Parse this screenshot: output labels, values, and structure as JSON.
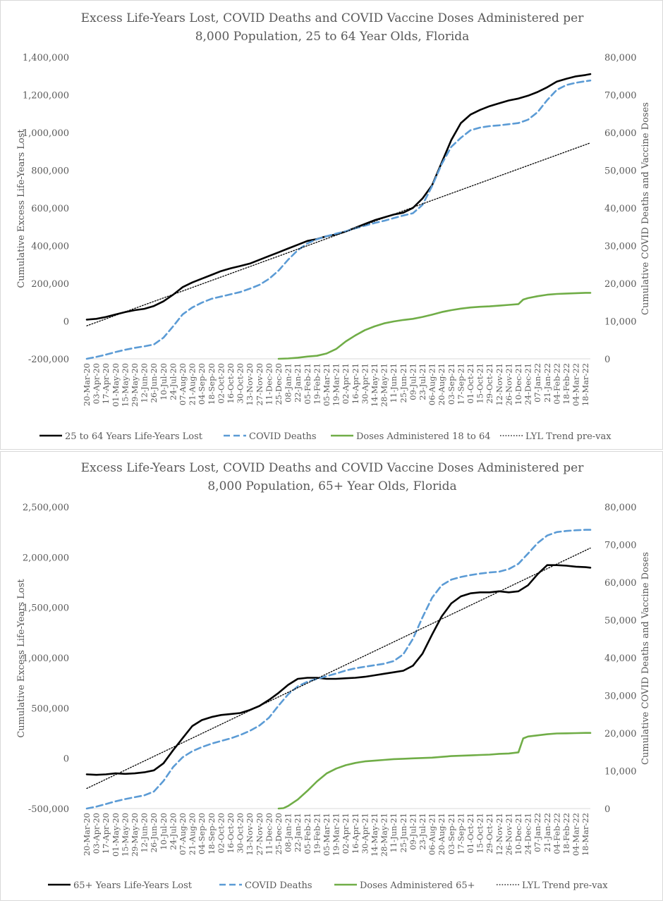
{
  "colors": {
    "lyl": "#000000",
    "deaths": "#5b9bd5",
    "doses": "#70ad47",
    "trend": "#000000",
    "text": "#595959",
    "axis": "#d9d9d9"
  },
  "x_tick_labels": [
    "20-Mar-20",
    "03-Apr-20",
    "17-Apr-20",
    "01-May-20",
    "15-May-20",
    "29-May-20",
    "12-Jun-20",
    "26-Jun-20",
    "10-Jul-20",
    "24-Jul-20",
    "07-Aug-20",
    "21-Aug-20",
    "04-Sep-20",
    "18-Sep-20",
    "02-Oct-20",
    "16-Oct-20",
    "30-Oct-20",
    "13-Nov-20",
    "27-Nov-20",
    "11-Dec-20",
    "25-Dec-20",
    "08-Jan-21",
    "22-Jan-21",
    "05-Feb-21",
    "19-Feb-21",
    "05-Mar-21",
    "19-Mar-21",
    "02-Apr-21",
    "16-Apr-21",
    "30-Apr-21",
    "14-May-21",
    "28-May-21",
    "11-Jun-21",
    "25-Jun-21",
    "09-Jul-21",
    "23-Jul-21",
    "06-Aug-21",
    "20-Aug-21",
    "03-Sep-21",
    "17-Sep-21",
    "01-Oct-21",
    "15-Oct-21",
    "29-Oct-21",
    "12-Nov-21",
    "26-Nov-21",
    "10-Dec-21",
    "24-Dec-21",
    "07-Jan-22",
    "21-Jan-22",
    "04-Feb-22",
    "18-Feb-22",
    "04-Mar-22",
    "18-Mar-22"
  ],
  "chart_data": [
    {
      "type": "line",
      "title_line1": "Excess Life-Years Lost, COVID Deaths and COVID Vaccine Doses Administered per",
      "title_line2": "8,000 Population, 25 to 64 Year Olds, Florida",
      "ylabel_left": "Cumulative Excess Life-Years Lost",
      "ylabel_right": "Cumulative COVID Deaths and Vaccine Doses",
      "ylim_left": [
        -200000,
        1400000
      ],
      "ylim_right": [
        0,
        80000
      ],
      "yticks_left": [
        "1,400,000",
        "1,200,000",
        "1,000,000",
        "800,000",
        "600,000",
        "400,000",
        "200,000",
        "0",
        "-200,000"
      ],
      "yticks_right": [
        "80,000",
        "70,000",
        "60,000",
        "50,000",
        "40,000",
        "30,000",
        "20,000",
        "10,000",
        "0"
      ],
      "x_start": "20-Mar-20",
      "x_end": "25-Mar-22",
      "legend_position": "bottom",
      "legend": [
        "25 to 64 Years Life-Years Lost",
        "COVID Deaths",
        "Doses Administered 18 to 64",
        "LYL Trend pre-vax"
      ],
      "series": [
        {
          "name": "25 to 64 Years Life-Years Lost",
          "axis": "left",
          "style": "solid-black",
          "x": [
            "20-Mar-20",
            "03-Apr-20",
            "17-Apr-20",
            "01-May-20",
            "15-May-20",
            "29-May-20",
            "12-Jun-20",
            "26-Jun-20",
            "10-Jul-20",
            "24-Jul-20",
            "07-Aug-20",
            "21-Aug-20",
            "04-Sep-20",
            "18-Sep-20",
            "02-Oct-20",
            "16-Oct-20",
            "30-Oct-20",
            "13-Nov-20",
            "27-Nov-20",
            "11-Dec-20",
            "25-Dec-20",
            "08-Jan-21",
            "22-Jan-21",
            "05-Feb-21",
            "19-Feb-21",
            "05-Mar-21",
            "19-Mar-21",
            "02-Apr-21",
            "16-Apr-21",
            "30-Apr-21",
            "14-May-21",
            "28-May-21",
            "11-Jun-21",
            "25-Jun-21",
            "09-Jul-21",
            "23-Jul-21",
            "06-Aug-21",
            "20-Aug-21",
            "03-Sep-21",
            "17-Sep-21",
            "01-Oct-21",
            "15-Oct-21",
            "29-Oct-21",
            "12-Nov-21",
            "26-Nov-21",
            "10-Dec-21",
            "24-Dec-21",
            "07-Jan-22",
            "21-Jan-22",
            "04-Feb-22",
            "18-Feb-22",
            "04-Mar-22",
            "18-Mar-22",
            "25-Mar-22"
          ],
          "values": [
            8000,
            12000,
            22000,
            35000,
            48000,
            58000,
            65000,
            80000,
            105000,
            140000,
            180000,
            205000,
            225000,
            245000,
            265000,
            280000,
            292000,
            305000,
            325000,
            345000,
            365000,
            385000,
            405000,
            425000,
            435000,
            450000,
            460000,
            475000,
            495000,
            515000,
            535000,
            550000,
            565000,
            575000,
            600000,
            650000,
            720000,
            840000,
            960000,
            1050000,
            1095000,
            1120000,
            1140000,
            1155000,
            1170000,
            1180000,
            1195000,
            1215000,
            1240000,
            1270000,
            1285000,
            1298000,
            1305000,
            1310000
          ]
        },
        {
          "name": "COVID Deaths",
          "axis": "right",
          "style": "dashed-blue",
          "x": [
            "20-Mar-20",
            "03-Apr-20",
            "17-Apr-20",
            "01-May-20",
            "15-May-20",
            "29-May-20",
            "12-Jun-20",
            "26-Jun-20",
            "10-Jul-20",
            "24-Jul-20",
            "07-Aug-20",
            "21-Aug-20",
            "04-Sep-20",
            "18-Sep-20",
            "02-Oct-20",
            "16-Oct-20",
            "30-Oct-20",
            "13-Nov-20",
            "27-Nov-20",
            "11-Dec-20",
            "25-Dec-20",
            "08-Jan-21",
            "22-Jan-21",
            "05-Feb-21",
            "19-Feb-21",
            "05-Mar-21",
            "19-Mar-21",
            "02-Apr-21",
            "16-Apr-21",
            "30-Apr-21",
            "14-May-21",
            "28-May-21",
            "11-Jun-21",
            "25-Jun-21",
            "09-Jul-21",
            "23-Jul-21",
            "06-Aug-21",
            "20-Aug-21",
            "03-Sep-21",
            "17-Sep-21",
            "01-Oct-21",
            "15-Oct-21",
            "29-Oct-21",
            "12-Nov-21",
            "26-Nov-21",
            "10-Dec-21",
            "24-Dec-21",
            "07-Jan-22",
            "21-Jan-22",
            "04-Feb-22",
            "18-Feb-22",
            "04-Mar-22",
            "18-Mar-22",
            "25-Mar-22"
          ],
          "values": [
            0,
            500,
            1100,
            1800,
            2400,
            2900,
            3300,
            3800,
            5600,
            8600,
            11800,
            13600,
            14900,
            15900,
            16500,
            17100,
            17700,
            18600,
            19600,
            21200,
            23400,
            26300,
            28800,
            30600,
            31700,
            32500,
            33200,
            33800,
            34600,
            35300,
            36000,
            36600,
            37300,
            38000,
            38600,
            40800,
            45800,
            51600,
            56200,
            58600,
            60600,
            61300,
            61700,
            61900,
            62200,
            62500,
            63400,
            65400,
            68600,
            71300,
            72600,
            73200,
            73600,
            73800
          ]
        },
        {
          "name": "Doses Administered 18 to 64",
          "axis": "right",
          "style": "solid-green",
          "x": [
            "25-Dec-20",
            "08-Jan-21",
            "22-Jan-21",
            "05-Feb-21",
            "19-Feb-21",
            "05-Mar-21",
            "19-Mar-21",
            "02-Apr-21",
            "16-Apr-21",
            "30-Apr-21",
            "14-May-21",
            "28-May-21",
            "11-Jun-21",
            "25-Jun-21",
            "09-Jul-21",
            "23-Jul-21",
            "06-Aug-21",
            "20-Aug-21",
            "03-Sep-21",
            "17-Sep-21",
            "01-Oct-21",
            "15-Oct-21",
            "29-Oct-21",
            "12-Nov-21",
            "26-Nov-21",
            "10-Dec-21",
            "17-Dec-21",
            "24-Dec-21",
            "07-Jan-22",
            "21-Jan-22",
            "04-Feb-22",
            "18-Feb-22",
            "04-Mar-22",
            "18-Mar-22",
            "25-Mar-22"
          ],
          "values": [
            0,
            100,
            300,
            600,
            800,
            1400,
            2600,
            4600,
            6200,
            7600,
            8600,
            9400,
            9900,
            10300,
            10600,
            11100,
            11700,
            12400,
            12900,
            13300,
            13600,
            13800,
            13900,
            14100,
            14300,
            14500,
            15700,
            16100,
            16600,
            17000,
            17200,
            17300,
            17400,
            17500,
            17500
          ]
        },
        {
          "name": "LYL Trend pre-vax",
          "axis": "left",
          "style": "dotted-black",
          "x": [
            "20-Mar-20",
            "25-Mar-22"
          ],
          "values": [
            -25000,
            945000
          ]
        }
      ]
    },
    {
      "type": "line",
      "title_line1": "Excess Life-Years Lost, COVID Deaths and COVID Vaccine Doses Administered per",
      "title_line2": "8,000 Population, 65+ Year Olds, Florida",
      "ylabel_left": "Cumulative Excess Life-Years Lost",
      "ylabel_right": "Cumulative COVID Deaths and Vaccine Doses",
      "ylim_left": [
        -500000,
        2500000
      ],
      "ylim_right": [
        0,
        80000
      ],
      "yticks_left": [
        "2,500,000",
        "2,000,000",
        "1,500,000",
        "1,000,000",
        "500,000",
        "0",
        "-500,000"
      ],
      "yticks_right": [
        "80,000",
        "70,000",
        "60,000",
        "50,000",
        "40,000",
        "30,000",
        "20,000",
        "10,000",
        "0"
      ],
      "x_start": "20-Mar-20",
      "x_end": "25-Mar-22",
      "legend_position": "bottom",
      "legend": [
        "65+ Years Life-Years Lost",
        "COVID Deaths",
        "Doses Administered 65+",
        "LYL Trend pre-vax"
      ],
      "series": [
        {
          "name": "65+ Years Life-Years Lost",
          "axis": "left",
          "style": "solid-black",
          "x": [
            "20-Mar-20",
            "03-Apr-20",
            "17-Apr-20",
            "01-May-20",
            "15-May-20",
            "29-May-20",
            "12-Jun-20",
            "26-Jun-20",
            "10-Jul-20",
            "24-Jul-20",
            "07-Aug-20",
            "21-Aug-20",
            "04-Sep-20",
            "18-Sep-20",
            "02-Oct-20",
            "16-Oct-20",
            "30-Oct-20",
            "13-Nov-20",
            "27-Nov-20",
            "11-Dec-20",
            "25-Dec-20",
            "08-Jan-21",
            "22-Jan-21",
            "05-Feb-21",
            "19-Feb-21",
            "05-Mar-21",
            "19-Mar-21",
            "02-Apr-21",
            "16-Apr-21",
            "30-Apr-21",
            "14-May-21",
            "28-May-21",
            "11-Jun-21",
            "25-Jun-21",
            "09-Jul-21",
            "23-Jul-21",
            "06-Aug-21",
            "20-Aug-21",
            "03-Sep-21",
            "17-Sep-21",
            "01-Oct-21",
            "15-Oct-21",
            "29-Oct-21",
            "12-Nov-21",
            "26-Nov-21",
            "10-Dec-21",
            "24-Dec-21",
            "07-Jan-22",
            "21-Jan-22",
            "04-Feb-22",
            "18-Feb-22",
            "04-Mar-22",
            "18-Mar-22",
            "25-Mar-22"
          ],
          "values": [
            -160000,
            -165000,
            -160000,
            -150000,
            -155000,
            -150000,
            -140000,
            -120000,
            -50000,
            80000,
            200000,
            320000,
            380000,
            410000,
            430000,
            440000,
            450000,
            480000,
            520000,
            580000,
            650000,
            730000,
            790000,
            800000,
            800000,
            790000,
            790000,
            795000,
            800000,
            810000,
            825000,
            840000,
            855000,
            870000,
            920000,
            1040000,
            1230000,
            1410000,
            1540000,
            1610000,
            1640000,
            1650000,
            1650000,
            1660000,
            1650000,
            1660000,
            1720000,
            1830000,
            1920000,
            1920000,
            1915000,
            1905000,
            1900000,
            1895000
          ]
        },
        {
          "name": "COVID Deaths",
          "axis": "right",
          "style": "dashed-blue",
          "x": [
            "20-Mar-20",
            "03-Apr-20",
            "17-Apr-20",
            "01-May-20",
            "15-May-20",
            "29-May-20",
            "12-Jun-20",
            "26-Jun-20",
            "10-Jul-20",
            "24-Jul-20",
            "07-Aug-20",
            "21-Aug-20",
            "04-Sep-20",
            "18-Sep-20",
            "02-Oct-20",
            "16-Oct-20",
            "30-Oct-20",
            "13-Nov-20",
            "27-Nov-20",
            "11-Dec-20",
            "25-Dec-20",
            "08-Jan-21",
            "22-Jan-21",
            "05-Feb-21",
            "19-Feb-21",
            "05-Mar-21",
            "19-Mar-21",
            "02-Apr-21",
            "16-Apr-21",
            "30-Apr-21",
            "14-May-21",
            "28-May-21",
            "11-Jun-21",
            "25-Jun-21",
            "09-Jul-21",
            "23-Jul-21",
            "06-Aug-21",
            "20-Aug-21",
            "03-Sep-21",
            "17-Sep-21",
            "01-Oct-21",
            "15-Oct-21",
            "29-Oct-21",
            "12-Nov-21",
            "26-Nov-21",
            "10-Dec-21",
            "24-Dec-21",
            "07-Jan-22",
            "21-Jan-22",
            "04-Feb-22",
            "18-Feb-22",
            "04-Mar-22",
            "18-Mar-22",
            "25-Mar-22"
          ],
          "values": [
            0,
            500,
            1200,
            1900,
            2500,
            3000,
            3500,
            4500,
            7300,
            11000,
            13600,
            15200,
            16300,
            17200,
            17900,
            18600,
            19500,
            20600,
            22000,
            24100,
            27300,
            30300,
            32400,
            33600,
            34400,
            35100,
            35800,
            36600,
            37200,
            37600,
            38000,
            38400,
            39100,
            40900,
            45000,
            50700,
            55900,
            59200,
            60700,
            61400,
            61900,
            62300,
            62600,
            62800,
            63500,
            64900,
            67600,
            70400,
            72400,
            73300,
            73600,
            73800,
            73900,
            73900
          ]
        },
        {
          "name": "Doses Administered 65+",
          "axis": "right",
          "style": "solid-green",
          "x": [
            "25-Dec-20",
            "01-Jan-21",
            "08-Jan-21",
            "22-Jan-21",
            "05-Feb-21",
            "19-Feb-21",
            "05-Mar-21",
            "19-Mar-21",
            "02-Apr-21",
            "16-Apr-21",
            "30-Apr-21",
            "14-May-21",
            "28-May-21",
            "11-Jun-21",
            "25-Jun-21",
            "09-Jul-21",
            "23-Jul-21",
            "06-Aug-21",
            "20-Aug-21",
            "03-Sep-21",
            "17-Sep-21",
            "01-Oct-21",
            "15-Oct-21",
            "29-Oct-21",
            "12-Nov-21",
            "26-Nov-21",
            "10-Dec-21",
            "17-Dec-21",
            "24-Dec-21",
            "07-Jan-22",
            "21-Jan-22",
            "04-Feb-22",
            "18-Feb-22",
            "04-Mar-22",
            "18-Mar-22",
            "25-Mar-22"
          ],
          "values": [
            0,
            100,
            700,
            2400,
            4700,
            7200,
            9300,
            10600,
            11500,
            12100,
            12500,
            12700,
            12900,
            13100,
            13200,
            13300,
            13400,
            13500,
            13700,
            13900,
            14000,
            14100,
            14200,
            14300,
            14500,
            14600,
            14900,
            18600,
            19100,
            19400,
            19700,
            19900,
            19950,
            20000,
            20050,
            20050
          ]
        },
        {
          "name": "LYL Trend pre-vax",
          "axis": "left",
          "style": "dotted-black",
          "x": [
            "20-Mar-20",
            "25-Mar-22"
          ],
          "values": [
            -300000,
            2090000
          ]
        }
      ]
    }
  ]
}
